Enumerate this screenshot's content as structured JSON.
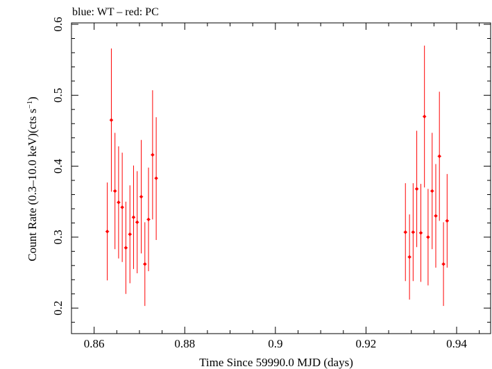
{
  "chart_data": {
    "type": "scatter",
    "title": "blue: WT – red: PC",
    "xlabel": "Time Since 59990.0 MJD (days)",
    "ylabel_main": "Count Rate (0.3–10.0 keV)(cts s",
    "ylabel_sup": "−1",
    "ylabel_close": ")",
    "xlim": [
      0.855,
      0.9475
    ],
    "ylim": [
      0.164,
      0.602
    ],
    "xticks": [
      0.86,
      0.88,
      0.9,
      0.92,
      0.94
    ],
    "xtick_labels": [
      "0.86",
      "0.88",
      "0.9",
      "0.92",
      "0.94"
    ],
    "yticks": [
      0.2,
      0.3,
      0.4,
      0.5,
      0.6
    ],
    "ytick_labels": [
      "0.2",
      "0.3",
      "0.4",
      "0.5",
      "0.6"
    ],
    "grid": false,
    "series": [
      {
        "color": "#ff0000",
        "marker": "diamond-with-errorbars",
        "points": [
          {
            "x": 0.8629,
            "y": 0.308,
            "lo": 0.239,
            "hi": 0.377,
            "xerr": 0.0004
          },
          {
            "x": 0.8638,
            "y": 0.465,
            "lo": 0.364,
            "hi": 0.566,
            "xerr": 0.0004
          },
          {
            "x": 0.8646,
            "y": 0.365,
            "lo": 0.283,
            "hi": 0.447,
            "xerr": 0.0004
          },
          {
            "x": 0.8654,
            "y": 0.349,
            "lo": 0.27,
            "hi": 0.428,
            "xerr": 0.0004
          },
          {
            "x": 0.8662,
            "y": 0.342,
            "lo": 0.265,
            "hi": 0.419,
            "xerr": 0.0004
          },
          {
            "x": 0.867,
            "y": 0.285,
            "lo": 0.22,
            "hi": 0.35,
            "xerr": 0.0004
          },
          {
            "x": 0.8679,
            "y": 0.304,
            "lo": 0.235,
            "hi": 0.373,
            "xerr": 0.0004
          },
          {
            "x": 0.8687,
            "y": 0.328,
            "lo": 0.255,
            "hi": 0.401,
            "xerr": 0.0004
          },
          {
            "x": 0.8695,
            "y": 0.321,
            "lo": 0.249,
            "hi": 0.393,
            "xerr": 0.0004
          },
          {
            "x": 0.8704,
            "y": 0.357,
            "lo": 0.277,
            "hi": 0.437,
            "xerr": 0.0004
          },
          {
            "x": 0.8712,
            "y": 0.262,
            "lo": 0.203,
            "hi": 0.321,
            "xerr": 0.0004
          },
          {
            "x": 0.872,
            "y": 0.325,
            "lo": 0.252,
            "hi": 0.398,
            "xerr": 0.0004
          },
          {
            "x": 0.8729,
            "y": 0.416,
            "lo": 0.325,
            "hi": 0.507,
            "xerr": 0.0004
          },
          {
            "x": 0.8737,
            "y": 0.383,
            "lo": 0.296,
            "hi": 0.469,
            "xerr": 0.0004
          },
          {
            "x": 0.9287,
            "y": 0.307,
            "lo": 0.238,
            "hi": 0.376,
            "xerr": 0.0004
          },
          {
            "x": 0.9296,
            "y": 0.272,
            "lo": 0.212,
            "hi": 0.332,
            "xerr": 0.0004
          },
          {
            "x": 0.9304,
            "y": 0.307,
            "lo": 0.238,
            "hi": 0.376,
            "xerr": 0.0004
          },
          {
            "x": 0.9312,
            "y": 0.368,
            "lo": 0.286,
            "hi": 0.45,
            "xerr": 0.0004
          },
          {
            "x": 0.9321,
            "y": 0.306,
            "lo": 0.237,
            "hi": 0.375,
            "xerr": 0.0004
          },
          {
            "x": 0.9329,
            "y": 0.47,
            "lo": 0.37,
            "hi": 0.57,
            "xerr": 0.0004
          },
          {
            "x": 0.9337,
            "y": 0.3,
            "lo": 0.232,
            "hi": 0.368,
            "xerr": 0.0004
          },
          {
            "x": 0.9346,
            "y": 0.365,
            "lo": 0.283,
            "hi": 0.447,
            "xerr": 0.0004
          },
          {
            "x": 0.9354,
            "y": 0.33,
            "lo": 0.257,
            "hi": 0.403,
            "xerr": 0.0004
          },
          {
            "x": 0.9362,
            "y": 0.414,
            "lo": 0.323,
            "hi": 0.505,
            "xerr": 0.0004
          },
          {
            "x": 0.9371,
            "y": 0.262,
            "lo": 0.203,
            "hi": 0.321,
            "xerr": 0.0004
          },
          {
            "x": 0.9379,
            "y": 0.323,
            "lo": 0.257,
            "hi": 0.389,
            "xerr": 0.0004
          }
        ]
      }
    ]
  }
}
